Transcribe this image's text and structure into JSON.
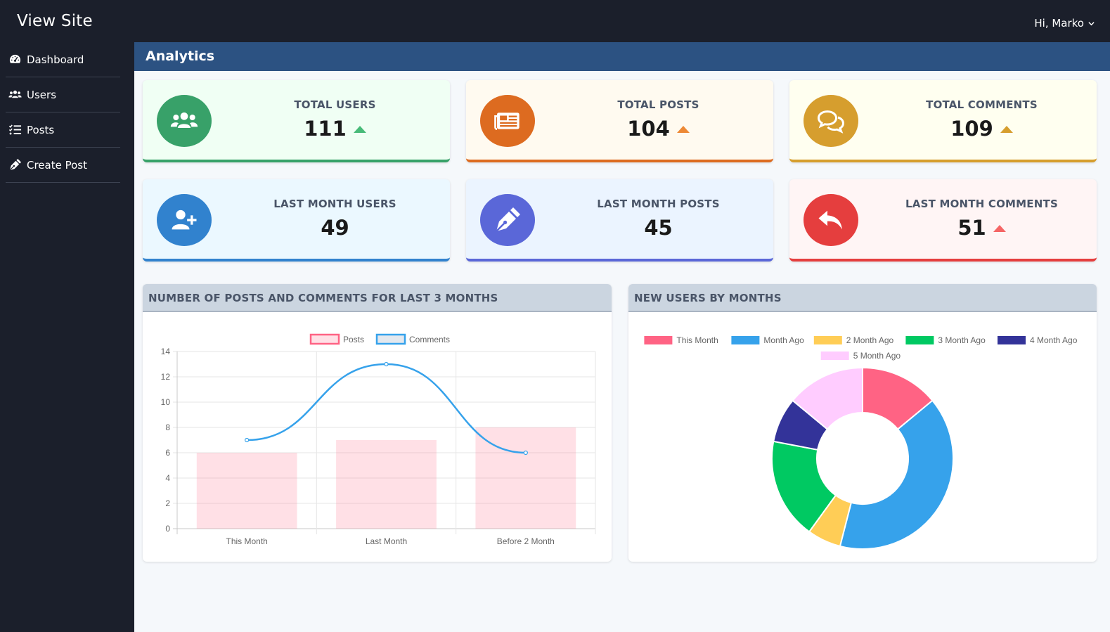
{
  "app": {
    "brand": "View Site",
    "user_greeting": "Hi, Marko"
  },
  "sidebar": {
    "items": [
      {
        "label": "Dashboard",
        "icon": "dashboard-icon"
      },
      {
        "label": "Users",
        "icon": "users-icon"
      },
      {
        "label": "Posts",
        "icon": "list-icon"
      },
      {
        "label": "Create Post",
        "icon": "pen-icon"
      }
    ]
  },
  "page": {
    "title": "Analytics"
  },
  "stats": [
    {
      "label": "TOTAL USERS",
      "value": "111",
      "icon": "users-icon",
      "trend": "up",
      "color": "#38a169",
      "bg": "#f0fff4",
      "arrow": "#48bb78"
    },
    {
      "label": "TOTAL POSTS",
      "value": "104",
      "icon": "newspaper-icon",
      "trend": "up",
      "color": "#dd6b20",
      "bg": "#fffaf0",
      "arrow": "#ed8936"
    },
    {
      "label": "TOTAL COMMENTS",
      "value": "109",
      "icon": "comments-icon",
      "trend": "up",
      "color": "#d69e2e",
      "bg": "#fffff0",
      "arrow": "#d69e2e"
    },
    {
      "label": "LAST MONTH USERS",
      "value": "49",
      "icon": "user-plus-icon",
      "trend": "none",
      "color": "#3182ce",
      "bg": "#ebf8ff",
      "arrow": ""
    },
    {
      "label": "LAST MONTH POSTS",
      "value": "45",
      "icon": "pen-icon",
      "trend": "none",
      "color": "#5a67d8",
      "bg": "#ebf4ff",
      "arrow": ""
    },
    {
      "label": "LAST MONTH COMMENTS",
      "value": "51",
      "icon": "reply-icon",
      "trend": "up",
      "color": "#e53e3e",
      "bg": "#fff5f5",
      "arrow": "#f56565"
    }
  ],
  "panels": {
    "posts_comments_title": "NUMBER OF POSTS AND COMMENTS FOR LAST 3 MONTHS",
    "new_users_title": "NEW USERS BY MONTHS"
  },
  "chart_data": [
    {
      "type": "bar",
      "categories": [
        "This Month",
        "Last Month",
        "Before 2 Month"
      ],
      "series": [
        {
          "name": "Posts",
          "type": "bar",
          "values": [
            6,
            7,
            8
          ],
          "color": "#ff6384"
        },
        {
          "name": "Comments",
          "type": "line",
          "values": [
            7,
            13,
            6
          ],
          "color": "#36a2eb"
        }
      ],
      "ylim": [
        0,
        14
      ],
      "yticks": [
        0,
        2,
        4,
        6,
        8,
        10,
        12,
        14
      ],
      "legend": "top",
      "grid": true
    },
    {
      "type": "pie",
      "variant": "doughnut",
      "labels": [
        "This Month",
        "Month Ago",
        "2 Month Ago",
        "3 Month Ago",
        "4 Month Ago",
        "5 Month Ago"
      ],
      "values": [
        14,
        40,
        6,
        18,
        8,
        14
      ],
      "colors": [
        "#ff6384",
        "#36a2eb",
        "#ffcd56",
        "#00c962",
        "#333399",
        "#ffccff"
      ],
      "legend": "top"
    }
  ]
}
